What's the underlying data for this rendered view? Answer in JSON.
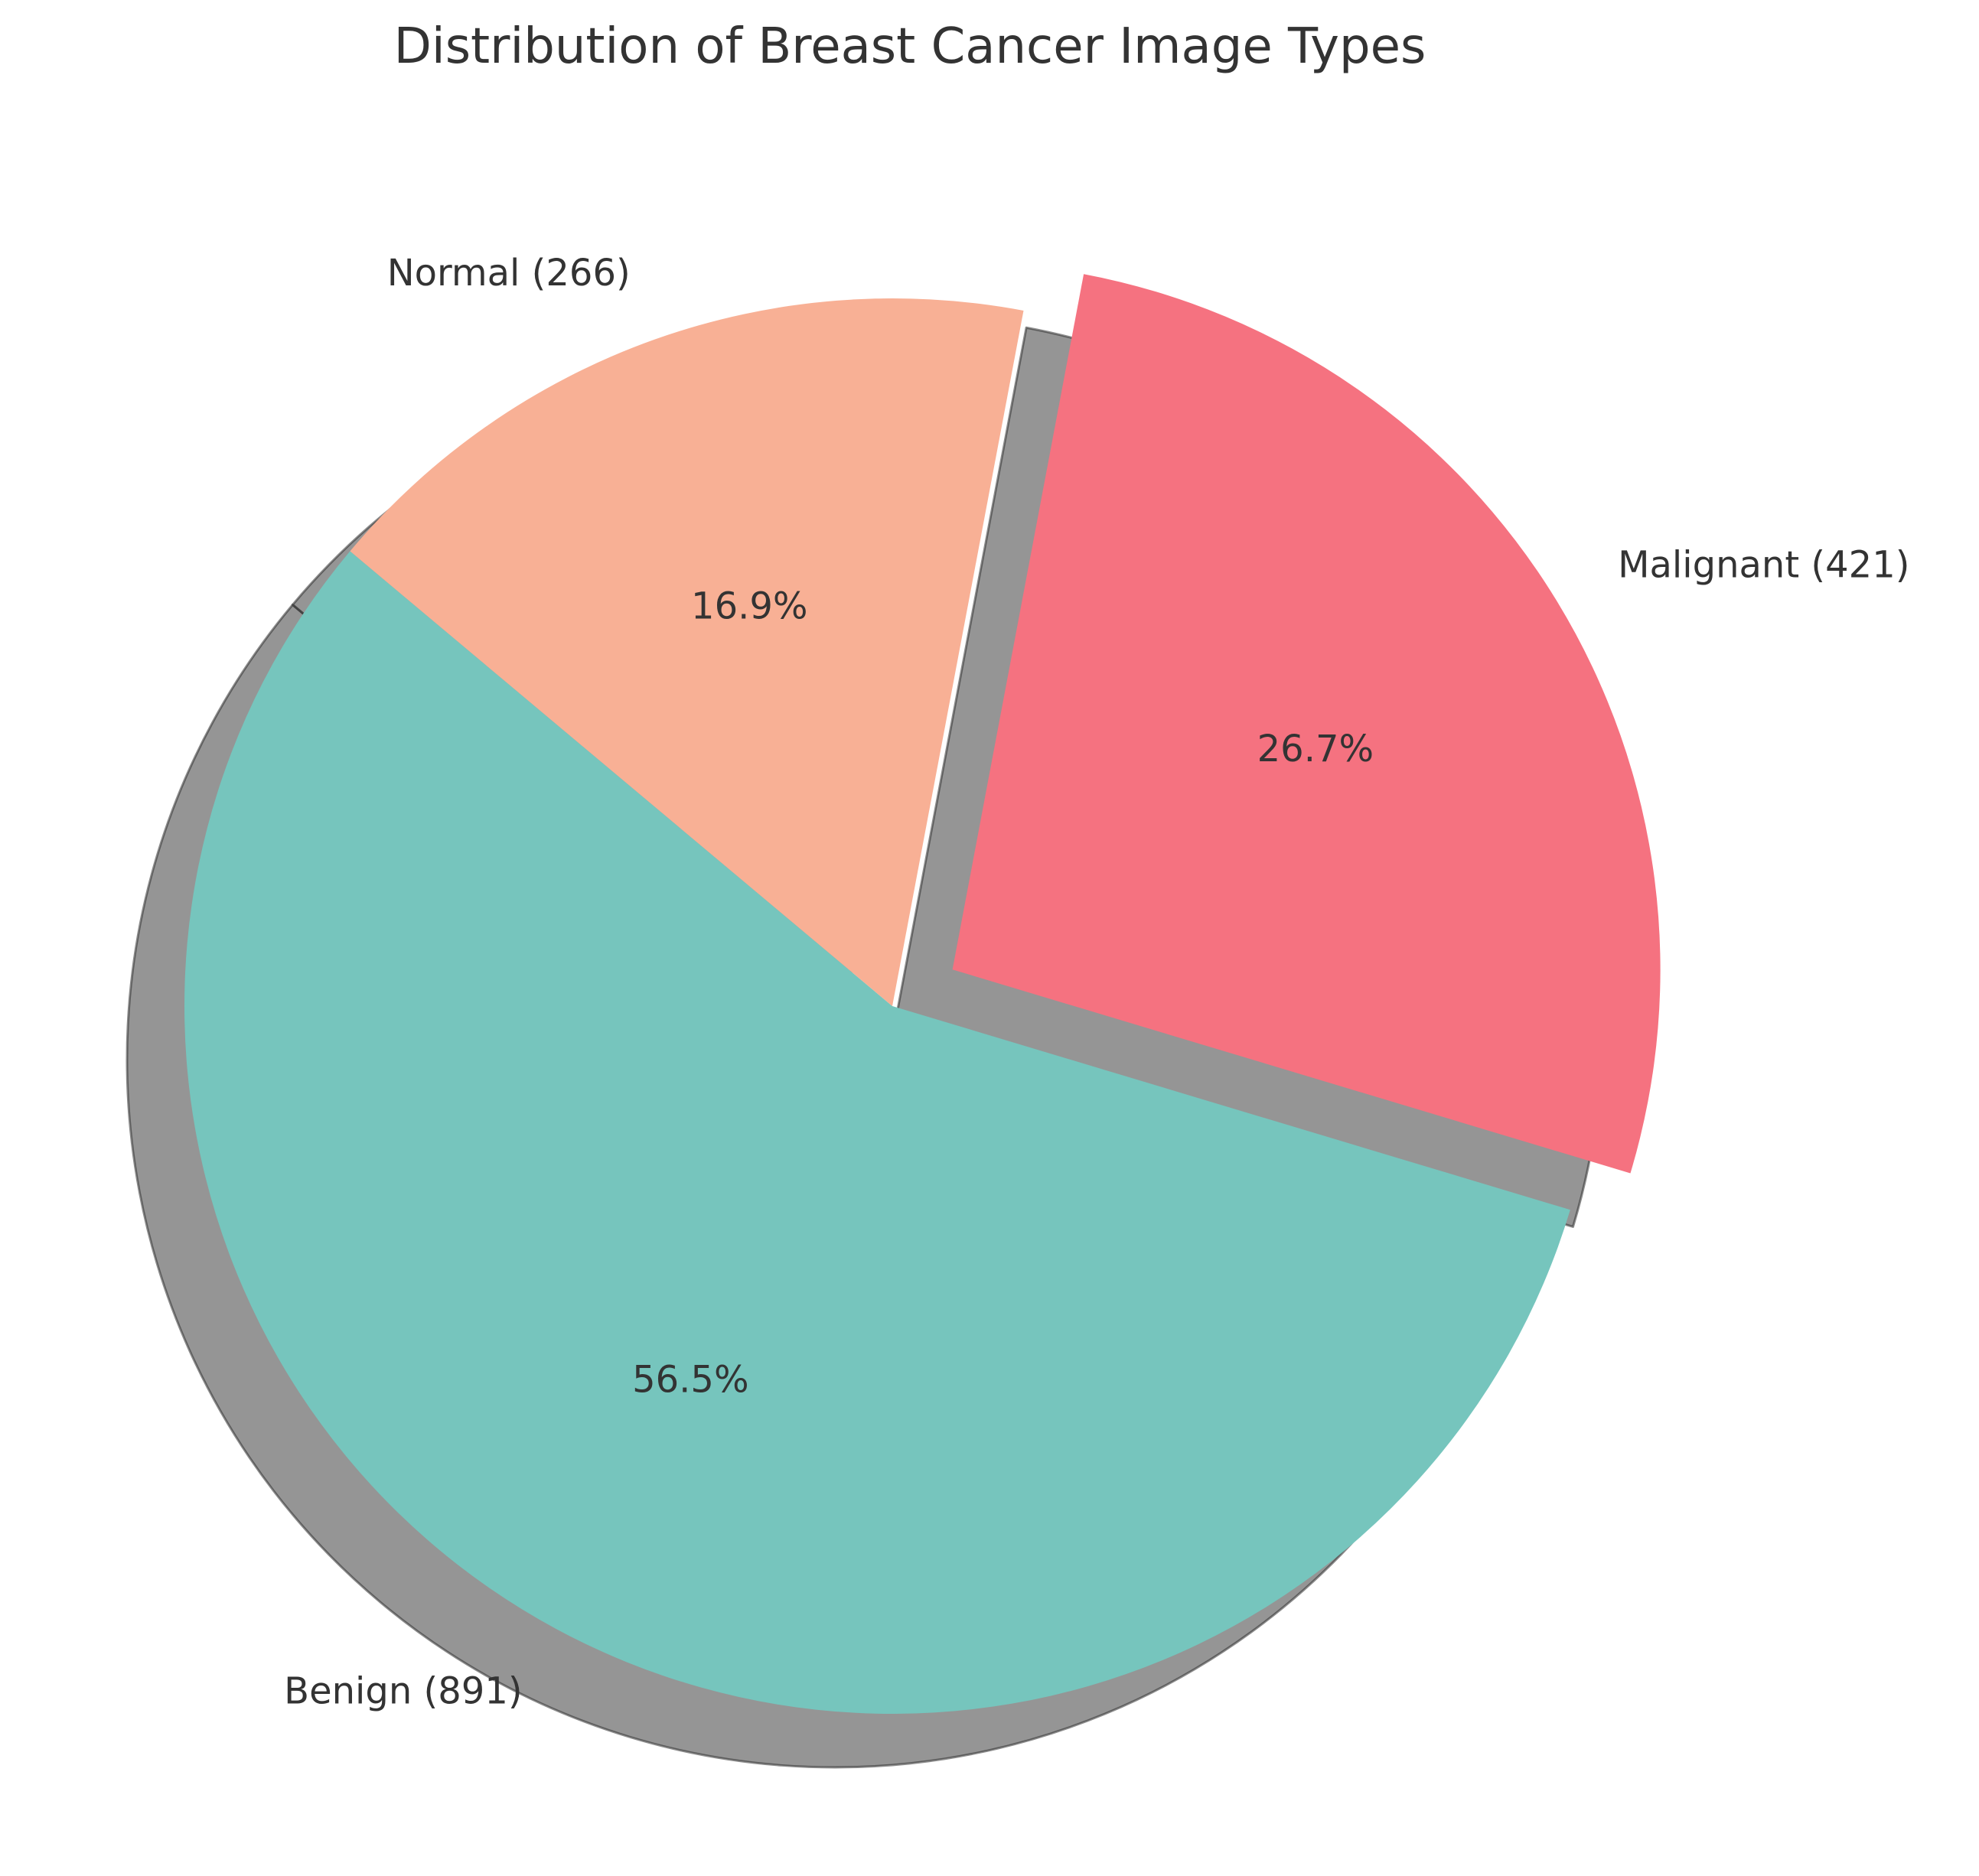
{
  "chart_data": {
    "type": "pie",
    "title": "Distribution of Breast Cancer Image Types",
    "slices": [
      {
        "label": "Benign (891)",
        "category": "Benign",
        "value": 891,
        "percent_label": "56.5%",
        "color": "#76c5bd",
        "exploded": false
      },
      {
        "label": "Malignant (421)",
        "category": "Malignant",
        "value": 421,
        "percent_label": "26.7%",
        "color": "#f57280",
        "exploded": true
      },
      {
        "label": "Normal (266)",
        "category": "Normal",
        "value": 266,
        "percent_label": "16.9%",
        "color": "#f8b095",
        "exploded": false
      }
    ],
    "start_angle_deg": 140,
    "direction": "counterclockwise",
    "shadow": true,
    "legend": "none"
  }
}
